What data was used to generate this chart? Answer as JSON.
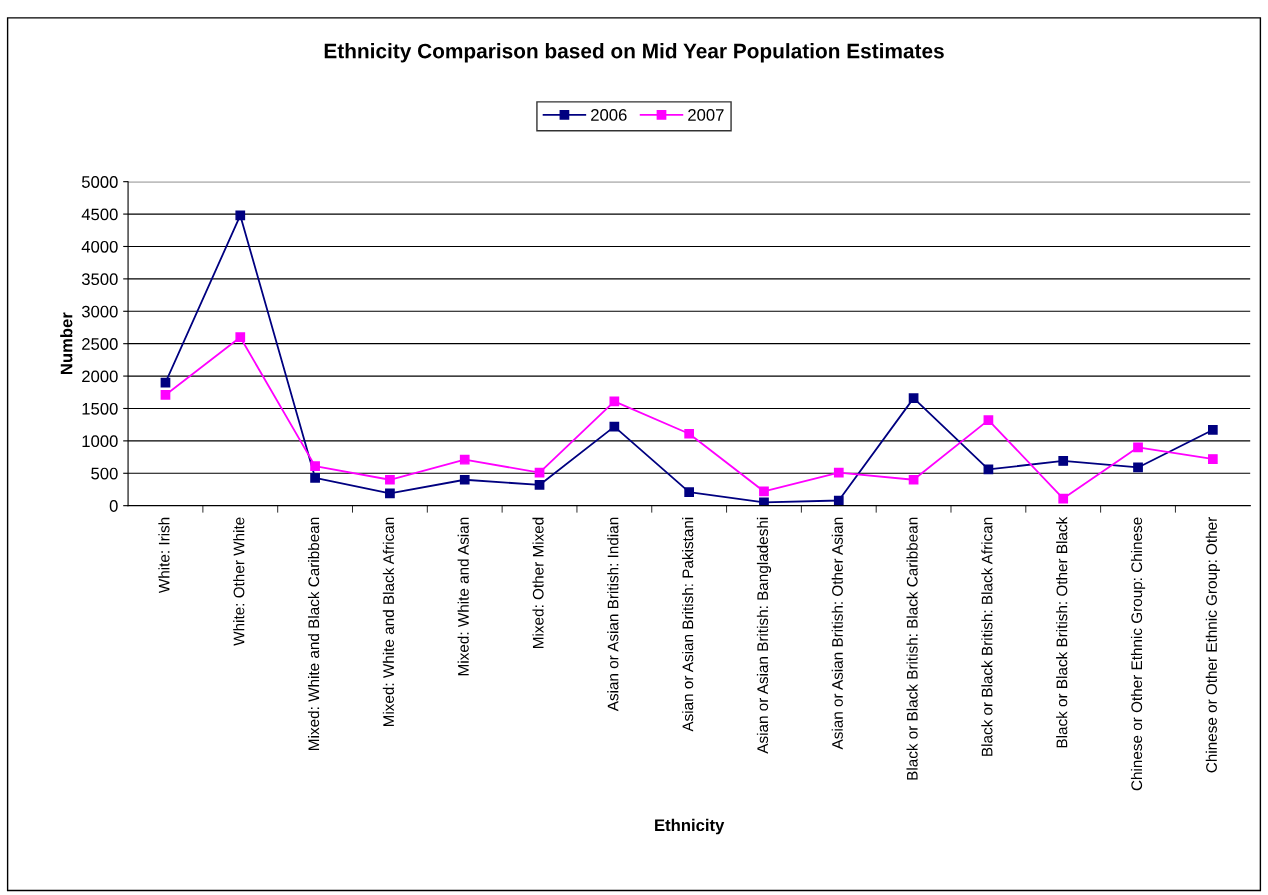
{
  "chart_data": {
    "type": "line",
    "title": "Ethnicity Comparison based on Mid Year Population Estimates",
    "xlabel": "Ethnicity",
    "ylabel": "Number",
    "categories": [
      "White: Irish",
      "White: Other White",
      "Mixed: White and Black Caribbean",
      "Mixed: White and Black African",
      "Mixed: White and Asian",
      "Mixed: Other Mixed",
      "Asian or Asian British: Indian",
      "Asian or Asian British: Pakistani",
      "Asian or Asian British: Bangladeshi",
      "Asian or Asian British: Other Asian",
      "Black or Black British: Black Caribbean",
      "Black or Black British: Black African",
      "Black or Black British: Other Black",
      "Chinese or Other Ethnic Group: Chinese",
      "Chinese or Other Ethnic Group: Other"
    ],
    "series": [
      {
        "name": "2006",
        "color": "#000080",
        "values": [
          1900,
          4480,
          430,
          190,
          400,
          320,
          1220,
          210,
          50,
          80,
          1660,
          560,
          690,
          590,
          1170
        ]
      },
      {
        "name": "2007",
        "color": "#ff00ff",
        "values": [
          1710,
          2600,
          610,
          400,
          710,
          510,
          1610,
          1110,
          220,
          510,
          400,
          1320,
          110,
          900,
          720
        ]
      }
    ],
    "ylim": [
      0,
      5000
    ],
    "yticks": [
      0,
      500,
      1000,
      1500,
      2000,
      2500,
      3000,
      3500,
      4000,
      4500,
      5000
    ],
    "grid": "y",
    "legend": "top",
    "marker": "square",
    "line_style": "solid"
  }
}
